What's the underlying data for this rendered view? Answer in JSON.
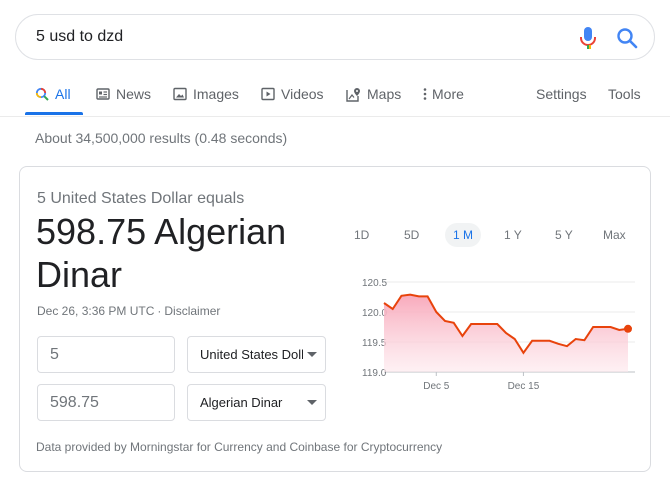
{
  "search": {
    "query": "5 usd to dzd"
  },
  "tabs": [
    {
      "label": "All",
      "icon": "search-icon",
      "active": true
    },
    {
      "label": "News",
      "icon": "news-icon"
    },
    {
      "label": "Images",
      "icon": "image-icon"
    },
    {
      "label": "Videos",
      "icon": "video-icon"
    },
    {
      "label": "Maps",
      "icon": "map-icon"
    },
    {
      "label": "More",
      "icon": "more-vert-icon"
    }
  ],
  "tools": {
    "settings": "Settings",
    "tools": "Tools"
  },
  "result_stats": "About 34,500,000 results (0.48 seconds)",
  "converter": {
    "equals_label": "5 United States Dollar equals",
    "result": "598.75 Algerian Dinar",
    "timestamp": "Dec 26, 3:36 PM UTC",
    "disclaimer": "Disclaimer",
    "from_amount": "5",
    "from_unit": "United States Dollar",
    "to_amount": "598.75",
    "to_unit": "Algerian Dinar",
    "ranges": [
      "1D",
      "5D",
      "1 M",
      "1 Y",
      "5 Y",
      "Max"
    ],
    "active_range": "1 M",
    "attribution": "Data provided by Morningstar for Currency and Coinbase for Cryptocurrency"
  },
  "colors": {
    "accent": "#1a73e8",
    "line": "#e8430c",
    "fill_top": "#f8a5b8",
    "fill_bottom": "#fde7ec"
  },
  "chart_data": {
    "type": "area",
    "y_ticks": [
      "120.5",
      "120.0",
      "119.5",
      "119.0"
    ],
    "ylim": [
      119.0,
      120.5
    ],
    "x_ticks": [
      "Dec 5",
      "Dec 15"
    ],
    "values": [
      120.15,
      120.05,
      120.27,
      120.29,
      120.26,
      120.26,
      120.0,
      119.85,
      119.82,
      119.6,
      119.8,
      119.8,
      119.8,
      119.8,
      119.65,
      119.55,
      119.32,
      119.52,
      119.52,
      119.52,
      119.47,
      119.43,
      119.55,
      119.53,
      119.75,
      119.75,
      119.75,
      119.7,
      119.72
    ]
  }
}
